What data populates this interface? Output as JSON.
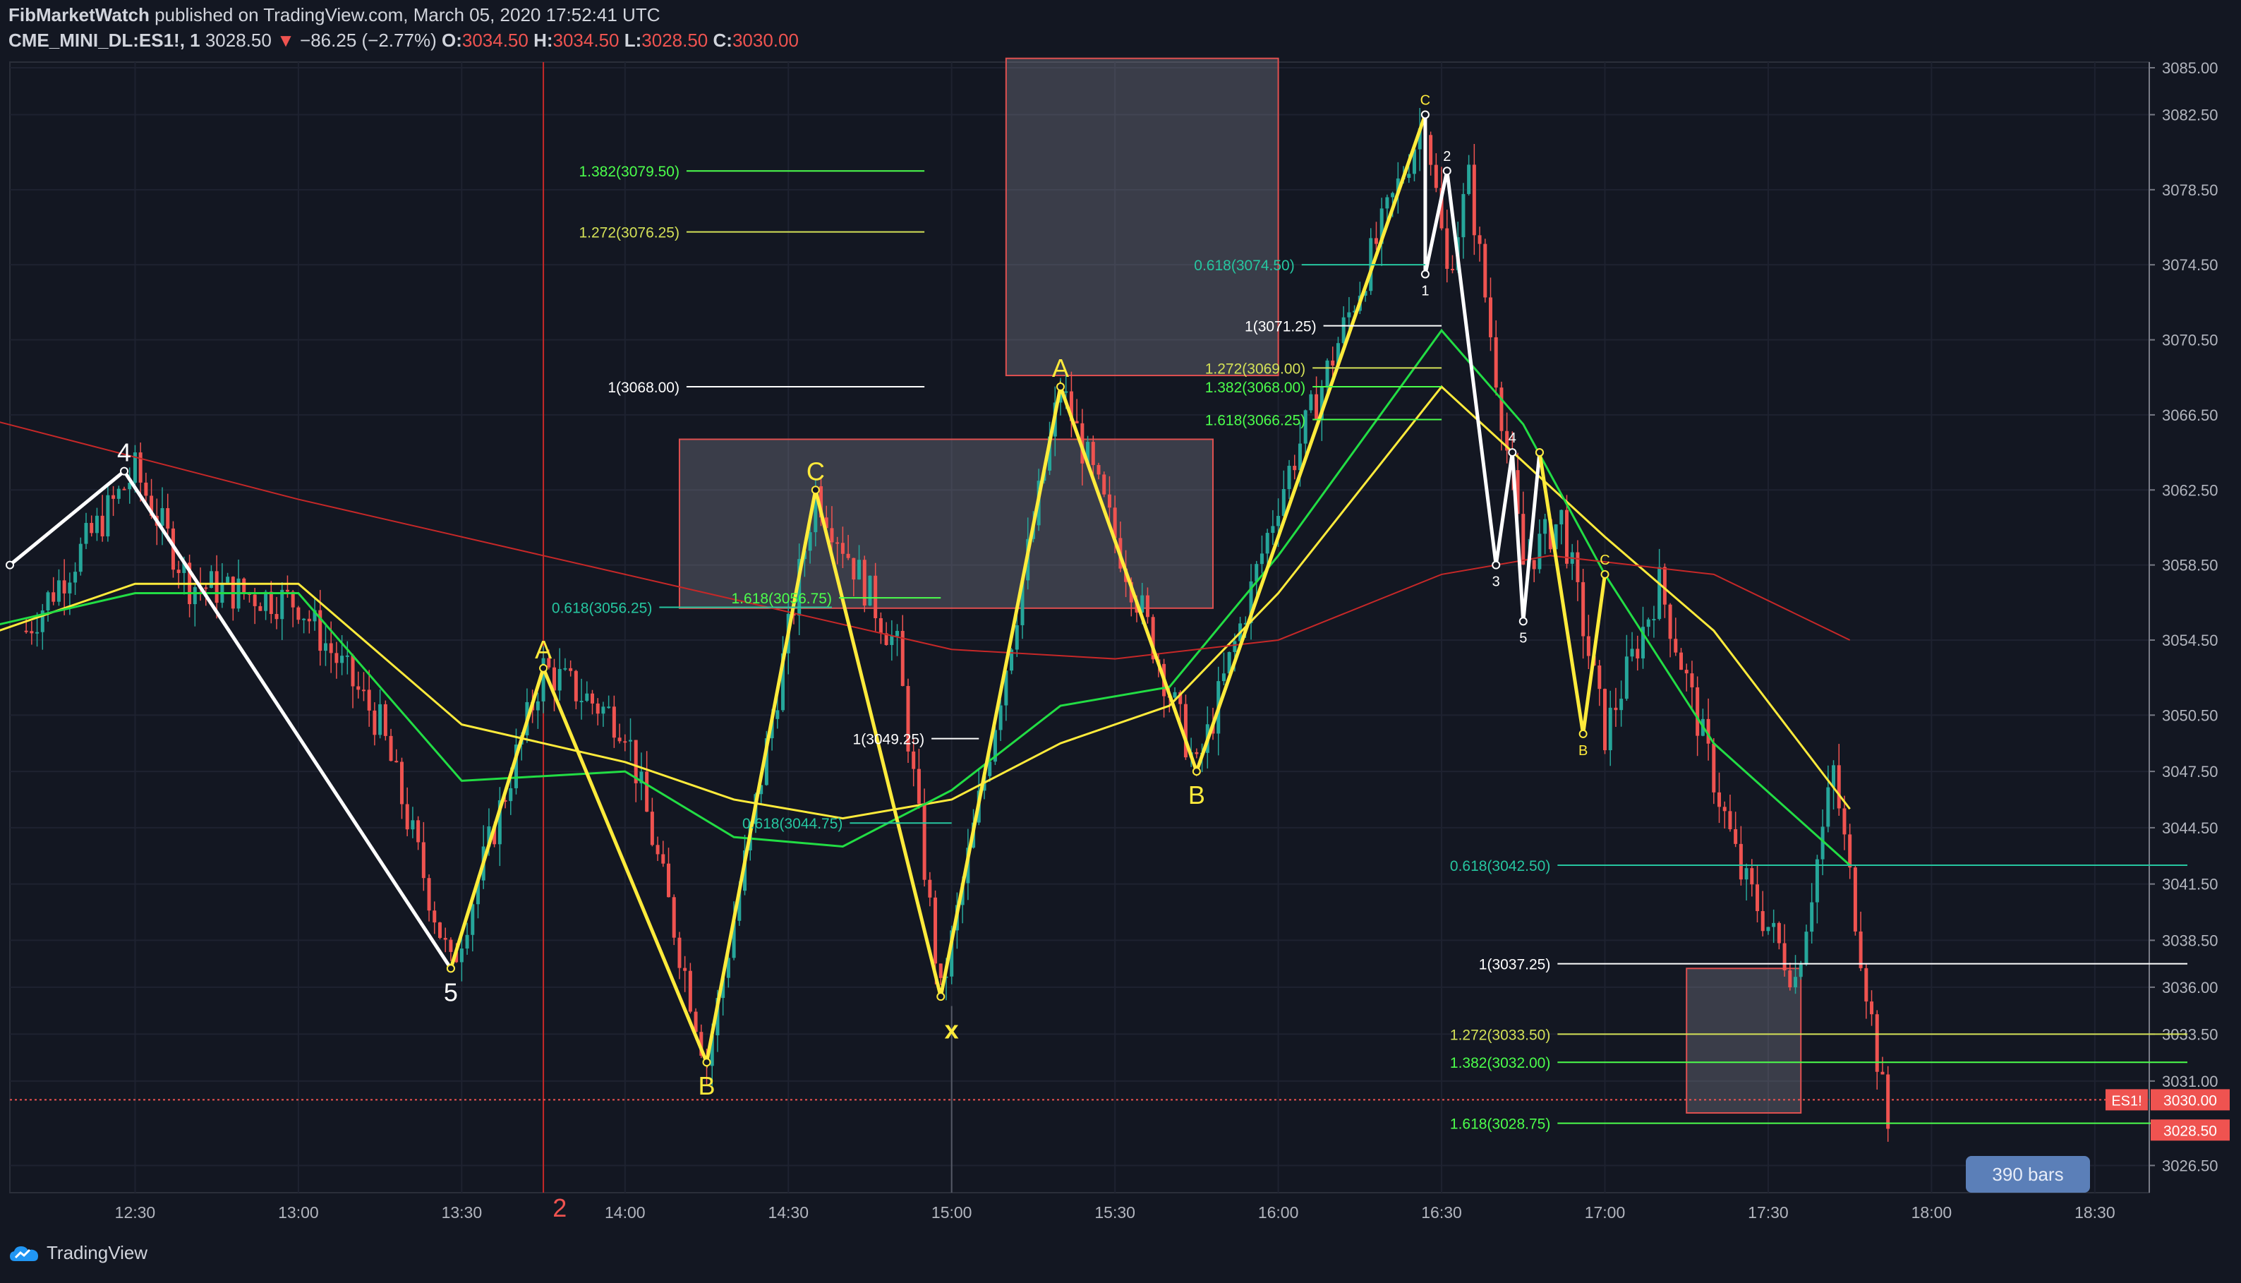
{
  "header": {
    "publisher": "FibMarketWatch",
    "published_text": "published on TradingView.com, March 05, 2020 17:52:41 UTC",
    "symbol": "CME_MINI_DL:ES1!, 1",
    "last_price": "3028.50",
    "change_arrow": "▼",
    "change": "−86.25 (−2.77%)",
    "ohlc": {
      "o_label": "O:",
      "o": "3034.50",
      "h_label": "H:",
      "h": "3034.50",
      "l_label": "L:",
      "l": "3028.50",
      "c_label": "C:",
      "c": "3030.00"
    }
  },
  "footer": {
    "brand": "TradingView",
    "icon": "tradingview-cloud-icon"
  },
  "badge": {
    "bars": "390 bars"
  },
  "colors": {
    "background": "#131722",
    "up": "#26a69a",
    "down": "#ef5350",
    "yellow": "#ffeb3b",
    "green": "#22dd44",
    "red_ma": "#c62828",
    "white": "#ffffff",
    "fib_teal": "#26c6a0",
    "fib_yellow": "#d4e157",
    "fib_green": "#4cff4c"
  },
  "chart_data": {
    "type": "candlestick",
    "title": "",
    "xlabel": "",
    "ylabel": "",
    "ylim": [
      3024.75,
      3085.0
    ],
    "x_ticks": [
      "12:30",
      "13:00",
      "13:30",
      "14:00",
      "14:30",
      "15:00",
      "15:30",
      "16:00",
      "16:30",
      "17:00",
      "17:30",
      "18:00",
      "18:30"
    ],
    "y_ticks": [
      "3085.00",
      "3082.50",
      "3078.50",
      "3074.50",
      "3070.50",
      "3066.50",
      "3062.50",
      "3058.50",
      "3054.50",
      "3050.50",
      "3047.50",
      "3044.50",
      "3041.50",
      "3038.50",
      "3036.00",
      "3033.50",
      "3031.00",
      "3026.50"
    ],
    "price_labels": [
      {
        "text": "ES1!",
        "value": 3030.0
      },
      {
        "text": "3030.00",
        "value": 3030.0
      },
      {
        "text": "3028.50",
        "value": 3028.5
      }
    ],
    "candles_approx_price_path": [
      {
        "time": "12:10",
        "price": 3055.0
      },
      {
        "time": "12:30",
        "price": 3063.5
      },
      {
        "time": "12:40",
        "price": 3057.5
      },
      {
        "time": "13:00",
        "price": 3056.5
      },
      {
        "time": "13:15",
        "price": 3050.0
      },
      {
        "time": "13:28",
        "price": 3037.0
      },
      {
        "time": "13:45",
        "price": 3053.0
      },
      {
        "time": "14:00",
        "price": 3050.0
      },
      {
        "time": "14:15",
        "price": 3032.0
      },
      {
        "time": "14:35",
        "price": 3062.5
      },
      {
        "time": "14:50",
        "price": 3054.0
      },
      {
        "time": "14:58",
        "price": 3035.5
      },
      {
        "time": "15:20",
        "price": 3068.0
      },
      {
        "time": "15:35",
        "price": 3056.0
      },
      {
        "time": "15:45",
        "price": 3047.5
      },
      {
        "time": "16:00",
        "price": 3062.0
      },
      {
        "time": "16:27",
        "price": 3082.5
      },
      {
        "time": "16:31",
        "price": 3074.0
      },
      {
        "time": "16:35",
        "price": 3079.0
      },
      {
        "time": "16:45",
        "price": 3058.5
      },
      {
        "time": "16:52",
        "price": 3061.0
      },
      {
        "time": "17:00",
        "price": 3049.5
      },
      {
        "time": "17:10",
        "price": 3057.5
      },
      {
        "time": "17:25",
        "price": 3042.0
      },
      {
        "time": "17:35",
        "price": 3036.5
      },
      {
        "time": "17:42",
        "price": 3047.5
      },
      {
        "time": "17:52",
        "price": 3028.5
      }
    ],
    "moving_averages": [
      {
        "name": "",
        "color": "#ffeb3b",
        "points": [
          [
            "12:00",
            3054.5
          ],
          [
            "12:30",
            3057.5
          ],
          [
            "13:00",
            3057.5
          ],
          [
            "13:30",
            3050.0
          ],
          [
            "14:00",
            3048.0
          ],
          [
            "14:20",
            3046.0
          ],
          [
            "14:40",
            3045.0
          ],
          [
            "15:00",
            3046.0
          ],
          [
            "15:20",
            3049.0
          ],
          [
            "15:40",
            3051.0
          ],
          [
            "16:00",
            3057.0
          ],
          [
            "16:30",
            3068.0
          ],
          [
            "16:45",
            3064.0
          ],
          [
            "17:00",
            3060.0
          ],
          [
            "17:20",
            3055.0
          ],
          [
            "17:45",
            3045.5
          ]
        ]
      },
      {
        "name": "",
        "color": "#22dd44",
        "points": [
          [
            "12:00",
            3055.0
          ],
          [
            "12:30",
            3057.0
          ],
          [
            "13:00",
            3057.0
          ],
          [
            "13:30",
            3047.0
          ],
          [
            "14:00",
            3047.5
          ],
          [
            "14:20",
            3044.0
          ],
          [
            "14:40",
            3043.5
          ],
          [
            "15:00",
            3046.5
          ],
          [
            "15:20",
            3051.0
          ],
          [
            "15:40",
            3052.0
          ],
          [
            "16:00",
            3059.0
          ],
          [
            "16:30",
            3071.0
          ],
          [
            "16:45",
            3066.0
          ],
          [
            "17:00",
            3058.0
          ],
          [
            "17:20",
            3049.0
          ],
          [
            "17:45",
            3042.5
          ]
        ]
      },
      {
        "name": "",
        "color": "#c62828",
        "points": [
          [
            "12:00",
            3066.5
          ],
          [
            "13:00",
            3062.0
          ],
          [
            "14:00",
            3058.0
          ],
          [
            "15:00",
            3054.0
          ],
          [
            "15:30",
            3053.5
          ],
          [
            "16:00",
            3054.5
          ],
          [
            "16:30",
            3058.0
          ],
          [
            "16:50",
            3059.0
          ],
          [
            "17:20",
            3058.0
          ],
          [
            "17:45",
            3054.5
          ]
        ]
      }
    ],
    "wave_labels": [
      {
        "text": "4",
        "time": "12:28",
        "price": 3063.5,
        "color": "#ffffff"
      },
      {
        "text": "5",
        "time": "13:28",
        "price": 3037.0,
        "color": "#ffffff"
      },
      {
        "text": "A",
        "time": "13:45",
        "price": 3053.0,
        "color": "#ffeb3b"
      },
      {
        "text": "B",
        "time": "14:15",
        "price": 3032.0,
        "color": "#ffeb3b"
      },
      {
        "text": "C",
        "time": "14:35",
        "price": 3062.5,
        "color": "#ffeb3b"
      },
      {
        "text": "x",
        "time": "15:00",
        "price": 3035.0,
        "color": "#ffeb3b"
      },
      {
        "text": "A",
        "time": "15:20",
        "price": 3068.0,
        "color": "#ffeb3b"
      },
      {
        "text": "B",
        "time": "15:45",
        "price": 3047.5,
        "color": "#ffeb3b"
      },
      {
        "text": "C",
        "time": "16:27",
        "price": 3082.5,
        "color": "#ffeb3b"
      },
      {
        "text": "1",
        "time": "16:27",
        "price": 3074.0,
        "color": "#ffffff"
      },
      {
        "text": "2",
        "time": "16:31",
        "price": 3079.5,
        "color": "#ffffff"
      },
      {
        "text": "3",
        "time": "16:40",
        "price": 3058.5,
        "color": "#ffffff"
      },
      {
        "text": "4",
        "time": "16:43",
        "price": 3064.5,
        "color": "#ffffff"
      },
      {
        "text": "5",
        "time": "16:45",
        "price": 3055.5,
        "color": "#ffffff"
      },
      {
        "text": "B",
        "time": "16:56",
        "price": 3049.5,
        "color": "#ffeb3b"
      },
      {
        "text": "C",
        "time": "17:00",
        "price": 3058.0,
        "color": "#ffeb3b"
      },
      {
        "text": "2",
        "time": "13:48",
        "price": 3025.5,
        "color": "#ef5350"
      }
    ],
    "fib_levels": [
      {
        "text": "1.382(3079.50)",
        "value": 3079.5,
        "color": "#4cff4c"
      },
      {
        "text": "1.272(3076.25)",
        "value": 3076.25,
        "color": "#d4e157"
      },
      {
        "text": "1(3068.00)",
        "value": 3068.0,
        "color": "#ffffff"
      },
      {
        "text": "0.618(3056.25)",
        "value": 3056.25,
        "color": "#26c6a0"
      },
      {
        "text": "1.618(3056.75)",
        "value": 3056.75,
        "color": "#4cff4c"
      },
      {
        "text": "1(3049.25)",
        "value": 3049.25,
        "color": "#ffffff"
      },
      {
        "text": "0.618(3044.75)",
        "value": 3044.75,
        "color": "#26c6a0"
      },
      {
        "text": "0.618(3074.50)",
        "value": 3074.5,
        "color": "#26c6a0"
      },
      {
        "text": "1(3071.25)",
        "value": 3071.25,
        "color": "#ffffff"
      },
      {
        "text": "1.272(3069.00)",
        "value": 3069.0,
        "color": "#d4e157"
      },
      {
        "text": "1.382(3068.00)",
        "value": 3068.0,
        "color": "#4cff4c"
      },
      {
        "text": "1.618(3066.25)",
        "value": 3066.25,
        "color": "#4cff4c"
      },
      {
        "text": "0.618(3042.50)",
        "value": 3042.5,
        "color": "#26c6a0"
      },
      {
        "text": "1(3037.25)",
        "value": 3037.25,
        "color": "#ffffff"
      },
      {
        "text": "1.272(3033.50)",
        "value": 3033.5,
        "color": "#d4e157"
      },
      {
        "text": "1.382(3032.00)",
        "value": 3032.0,
        "color": "#4cff4c"
      },
      {
        "text": "1.618(3028.75)",
        "value": 3028.75,
        "color": "#4cff4c"
      }
    ],
    "grid": true
  }
}
